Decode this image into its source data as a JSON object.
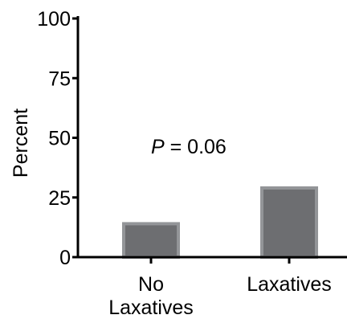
{
  "chart_data": {
    "type": "bar",
    "categories": [
      [
        "No",
        "Laxatives"
      ],
      [
        "Laxatives"
      ]
    ],
    "values": [
      14,
      29
    ],
    "ylabel": "Percent",
    "xlabel": "",
    "ylim": [
      0,
      100
    ],
    "yticks": [
      0,
      25,
      50,
      75,
      100
    ],
    "grid": false,
    "annotation": {
      "italic": "P",
      "text": " = 0.06"
    },
    "colors": {
      "bar_fill": "#6d6e71",
      "bar_stroke": "#939598",
      "axis": "#000000"
    }
  }
}
